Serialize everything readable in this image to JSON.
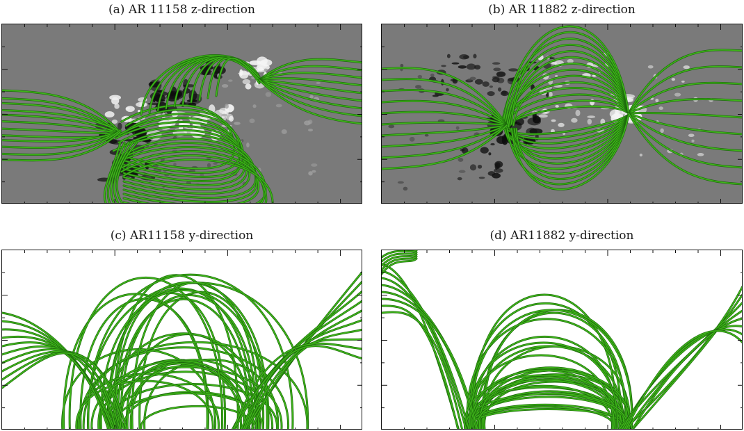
{
  "figure": {
    "panels": [
      {
        "id": "a",
        "title": "(a) AR 11158 z-direction",
        "view": "top",
        "background": "magnetogram"
      },
      {
        "id": "b",
        "title": "(b) AR 11882 z-direction",
        "view": "top",
        "background": "magnetogram"
      },
      {
        "id": "c",
        "title": "(c) AR11158 y-direction",
        "view": "side",
        "background": "white"
      },
      {
        "id": "d",
        "title": "(d) AR11882 y-direction",
        "view": "side",
        "background": "white"
      }
    ],
    "colors": {
      "field_line": "#3fb61a",
      "field_line_dark": "#1d6a0c",
      "magnetogram_bg": "#7a7a7a",
      "frame": "#111111"
    }
  }
}
